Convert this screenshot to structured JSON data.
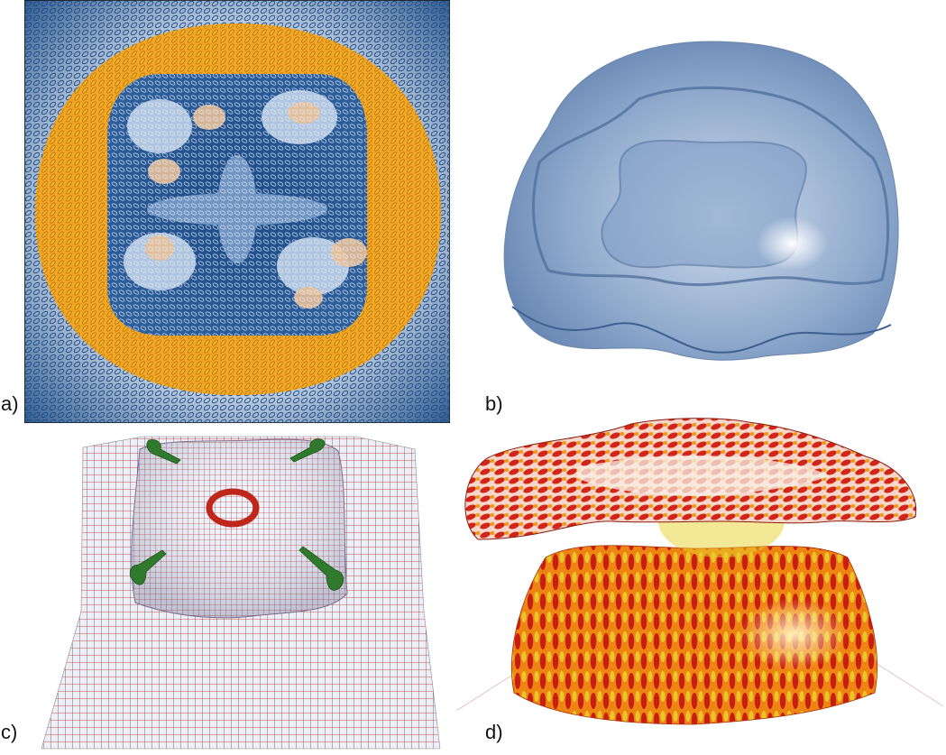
{
  "panels": {
    "a": {
      "label": "a)"
    },
    "b": {
      "label": "b)"
    },
    "c": {
      "label": "c)"
    },
    "d": {
      "label": "d)"
    }
  },
  "colors": {
    "deep_blue": "#123e74",
    "mid_blue": "#4d7eb2",
    "pale_blue": "#dde7f2",
    "gold": "#f2a623",
    "peach": "#e9c09a",
    "mesh_red": "#c23226",
    "mesh_blue": "#3a4f96",
    "defect_green": "#2f7a2c",
    "flame_red": "#c81d12",
    "flame_orange": "#ee8412",
    "flame_yellow": "#e8d22c"
  }
}
